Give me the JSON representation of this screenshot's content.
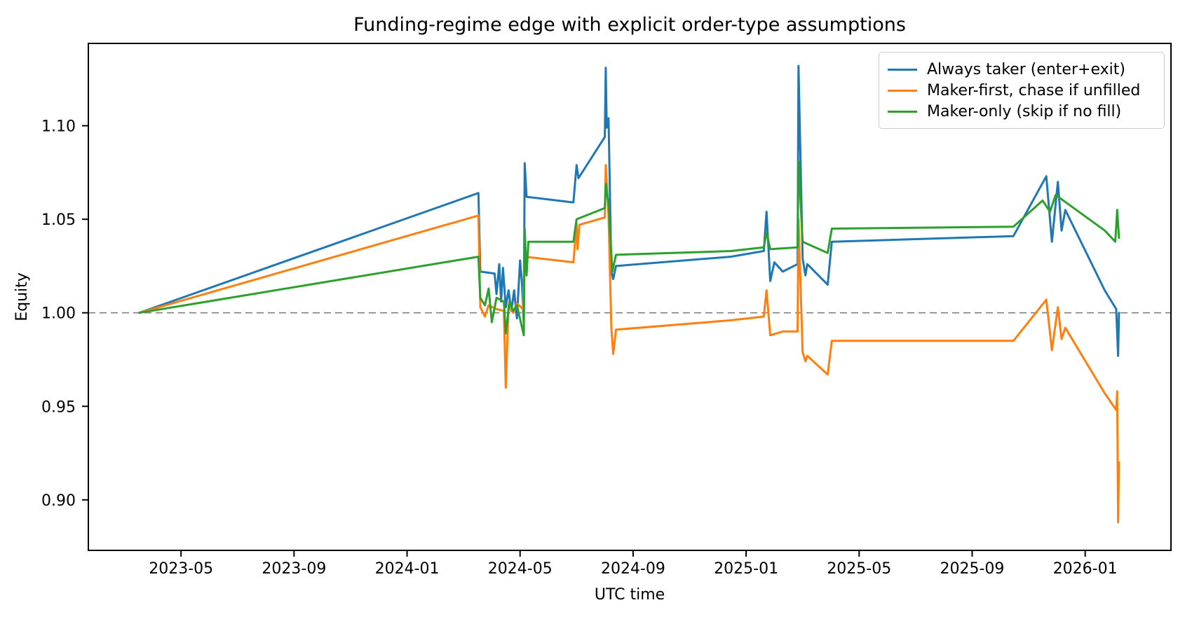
{
  "chart_data": {
    "type": "line",
    "title": "Funding-regime edge with explicit order-type assumptions",
    "xlabel": "UTC time",
    "ylabel": "Equity",
    "x_tick_labels": [
      "2023-05",
      "2023-09",
      "2024-01",
      "2024-05",
      "2024-09",
      "2025-01",
      "2025-05",
      "2025-09",
      "2026-01"
    ],
    "y_ticks": [
      0.9,
      0.95,
      1.0,
      1.05,
      1.1
    ],
    "y_tick_labels": [
      "0.90",
      "0.95",
      "1.00",
      "1.05",
      "1.10"
    ],
    "x_domain": [
      2023.06,
      2026.253
    ],
    "y_domain": [
      0.873,
      1.144
    ],
    "grid": false,
    "legend_position": "upper right",
    "reference_line": {
      "y": 1.0,
      "style": "dashed",
      "color": "#7f7f7f"
    },
    "series": [
      {
        "name": "Always taker (enter+exit)",
        "color": "#1f77b4",
        "points": [
          [
            "2023-03-17",
            1.0
          ],
          [
            "2024-03-17",
            1.064
          ],
          [
            "2024-03-19",
            1.022
          ],
          [
            "2024-04-04",
            1.021
          ],
          [
            "2024-04-06",
            1.01
          ],
          [
            "2024-04-09",
            1.026
          ],
          [
            "2024-04-11",
            1.006
          ],
          [
            "2024-04-13",
            1.024
          ],
          [
            "2024-04-16",
            1.003
          ],
          [
            "2024-04-19",
            1.012
          ],
          [
            "2024-04-22",
            1.001
          ],
          [
            "2024-04-25",
            1.012
          ],
          [
            "2024-04-28",
            0.997
          ],
          [
            "2024-05-01",
            1.028
          ],
          [
            "2024-05-03",
            1.016
          ],
          [
            "2024-05-05",
            0.994
          ],
          [
            "2024-05-06",
            1.08
          ],
          [
            "2024-05-08",
            1.062
          ],
          [
            "2024-06-28",
            1.059
          ],
          [
            "2024-07-01",
            1.079
          ],
          [
            "2024-07-03",
            1.072
          ],
          [
            "2024-08-01",
            1.094
          ],
          [
            "2024-08-02",
            1.131
          ],
          [
            "2024-08-03",
            1.099
          ],
          [
            "2024-08-05",
            1.104
          ],
          [
            "2024-08-08",
            1.022
          ],
          [
            "2024-08-10",
            1.018
          ],
          [
            "2024-08-13",
            1.025
          ],
          [
            "2024-12-15",
            1.03
          ],
          [
            "2025-01-20",
            1.033
          ],
          [
            "2025-01-23",
            1.054
          ],
          [
            "2025-01-27",
            1.017
          ],
          [
            "2025-02-01",
            1.027
          ],
          [
            "2025-02-10",
            1.022
          ],
          [
            "2025-02-26",
            1.026
          ],
          [
            "2025-02-27",
            1.132
          ],
          [
            "2025-03-01",
            1.029
          ],
          [
            "2025-03-04",
            1.02
          ],
          [
            "2025-03-06",
            1.026
          ],
          [
            "2025-03-28",
            1.015
          ],
          [
            "2025-04-02",
            1.038
          ],
          [
            "2025-10-15",
            1.041
          ],
          [
            "2025-11-20",
            1.073
          ],
          [
            "2025-11-26",
            1.038
          ],
          [
            "2025-12-02",
            1.07
          ],
          [
            "2025-12-06",
            1.044
          ],
          [
            "2025-12-10",
            1.055
          ],
          [
            "2026-01-22",
            1.012
          ],
          [
            "2026-02-04",
            1.002
          ],
          [
            "2026-02-06",
            0.977
          ],
          [
            "2026-02-07",
            1.0
          ]
        ]
      },
      {
        "name": "Maker-first, chase if unfilled",
        "color": "#ff7f0e",
        "points": [
          [
            "2023-03-17",
            1.0
          ],
          [
            "2024-03-17",
            1.052
          ],
          [
            "2024-03-19",
            1.003
          ],
          [
            "2024-03-24",
            0.998
          ],
          [
            "2024-03-28",
            1.004
          ],
          [
            "2024-04-06",
            1.002
          ],
          [
            "2024-04-14",
            1.001
          ],
          [
            "2024-04-16",
            0.96
          ],
          [
            "2024-04-19",
            1.004
          ],
          [
            "2024-04-24",
            1.0
          ],
          [
            "2024-04-28",
            1.005
          ],
          [
            "2024-05-04",
            1.002
          ],
          [
            "2024-05-06",
            1.03
          ],
          [
            "2024-06-28",
            1.027
          ],
          [
            "2024-07-01",
            1.048
          ],
          [
            "2024-07-02",
            1.034
          ],
          [
            "2024-07-04",
            1.047
          ],
          [
            "2024-08-01",
            1.051
          ],
          [
            "2024-08-02",
            1.079
          ],
          [
            "2024-08-05",
            1.052
          ],
          [
            "2024-08-08",
            0.992
          ],
          [
            "2024-08-10",
            0.978
          ],
          [
            "2024-08-13",
            0.991
          ],
          [
            "2024-12-15",
            0.996
          ],
          [
            "2025-01-20",
            0.998
          ],
          [
            "2025-01-23",
            1.012
          ],
          [
            "2025-01-27",
            0.988
          ],
          [
            "2025-02-10",
            0.99
          ],
          [
            "2025-02-26",
            0.99
          ],
          [
            "2025-02-27",
            1.05
          ],
          [
            "2025-03-01",
            0.979
          ],
          [
            "2025-03-04",
            0.974
          ],
          [
            "2025-03-06",
            0.977
          ],
          [
            "2025-03-28",
            0.967
          ],
          [
            "2025-04-02",
            0.985
          ],
          [
            "2025-10-15",
            0.985
          ],
          [
            "2025-11-20",
            1.007
          ],
          [
            "2025-11-26",
            0.98
          ],
          [
            "2025-12-02",
            1.003
          ],
          [
            "2025-12-06",
            0.986
          ],
          [
            "2025-12-10",
            0.992
          ],
          [
            "2026-01-22",
            0.957
          ],
          [
            "2026-02-04",
            0.948
          ],
          [
            "2026-02-05",
            0.958
          ],
          [
            "2026-02-06",
            0.888
          ],
          [
            "2026-02-07",
            0.92
          ]
        ]
      },
      {
        "name": "Maker-only (skip if no fill)",
        "color": "#2ca02c",
        "points": [
          [
            "2023-03-17",
            1.0
          ],
          [
            "2024-03-17",
            1.03
          ],
          [
            "2024-03-19",
            1.008
          ],
          [
            "2024-03-24",
            1.004
          ],
          [
            "2024-03-28",
            1.013
          ],
          [
            "2024-04-01",
            0.995
          ],
          [
            "2024-04-06",
            1.008
          ],
          [
            "2024-04-14",
            1.006
          ],
          [
            "2024-04-16",
            0.989
          ],
          [
            "2024-04-20",
            1.006
          ],
          [
            "2024-04-24",
            1.001
          ],
          [
            "2024-04-28",
            1.004
          ],
          [
            "2024-05-05",
            0.988
          ],
          [
            "2024-05-06",
            1.045
          ],
          [
            "2024-05-08",
            1.02
          ],
          [
            "2024-05-10",
            1.038
          ],
          [
            "2024-06-28",
            1.038
          ],
          [
            "2024-07-01",
            1.05
          ],
          [
            "2024-08-01",
            1.056
          ],
          [
            "2024-08-02",
            1.069
          ],
          [
            "2024-08-05",
            1.058
          ],
          [
            "2024-08-08",
            1.031
          ],
          [
            "2024-08-09",
            1.022
          ],
          [
            "2024-08-13",
            1.031
          ],
          [
            "2024-12-15",
            1.033
          ],
          [
            "2025-01-20",
            1.035
          ],
          [
            "2025-01-23",
            1.043
          ],
          [
            "2025-01-27",
            1.034
          ],
          [
            "2025-02-26",
            1.035
          ],
          [
            "2025-02-27",
            1.081
          ],
          [
            "2025-03-01",
            1.038
          ],
          [
            "2025-03-28",
            1.032
          ],
          [
            "2025-04-02",
            1.045
          ],
          [
            "2025-10-15",
            1.046
          ],
          [
            "2025-11-16",
            1.06
          ],
          [
            "2025-11-24",
            1.054
          ],
          [
            "2025-11-30",
            1.063
          ],
          [
            "2026-01-22",
            1.044
          ],
          [
            "2026-02-03",
            1.038
          ],
          [
            "2026-02-05",
            1.055
          ],
          [
            "2026-02-07",
            1.04
          ]
        ]
      }
    ]
  }
}
